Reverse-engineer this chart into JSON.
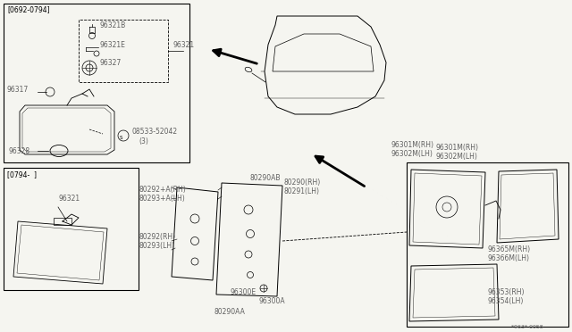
{
  "bg_color": "#f5f5f0",
  "text_color": "#000000",
  "label_color": "#606060",
  "fig_width": 6.4,
  "fig_height": 3.72,
  "footnote": "*963* 0058",
  "date_top": "[0692-0794]",
  "date_bot": "[0794-  ]"
}
